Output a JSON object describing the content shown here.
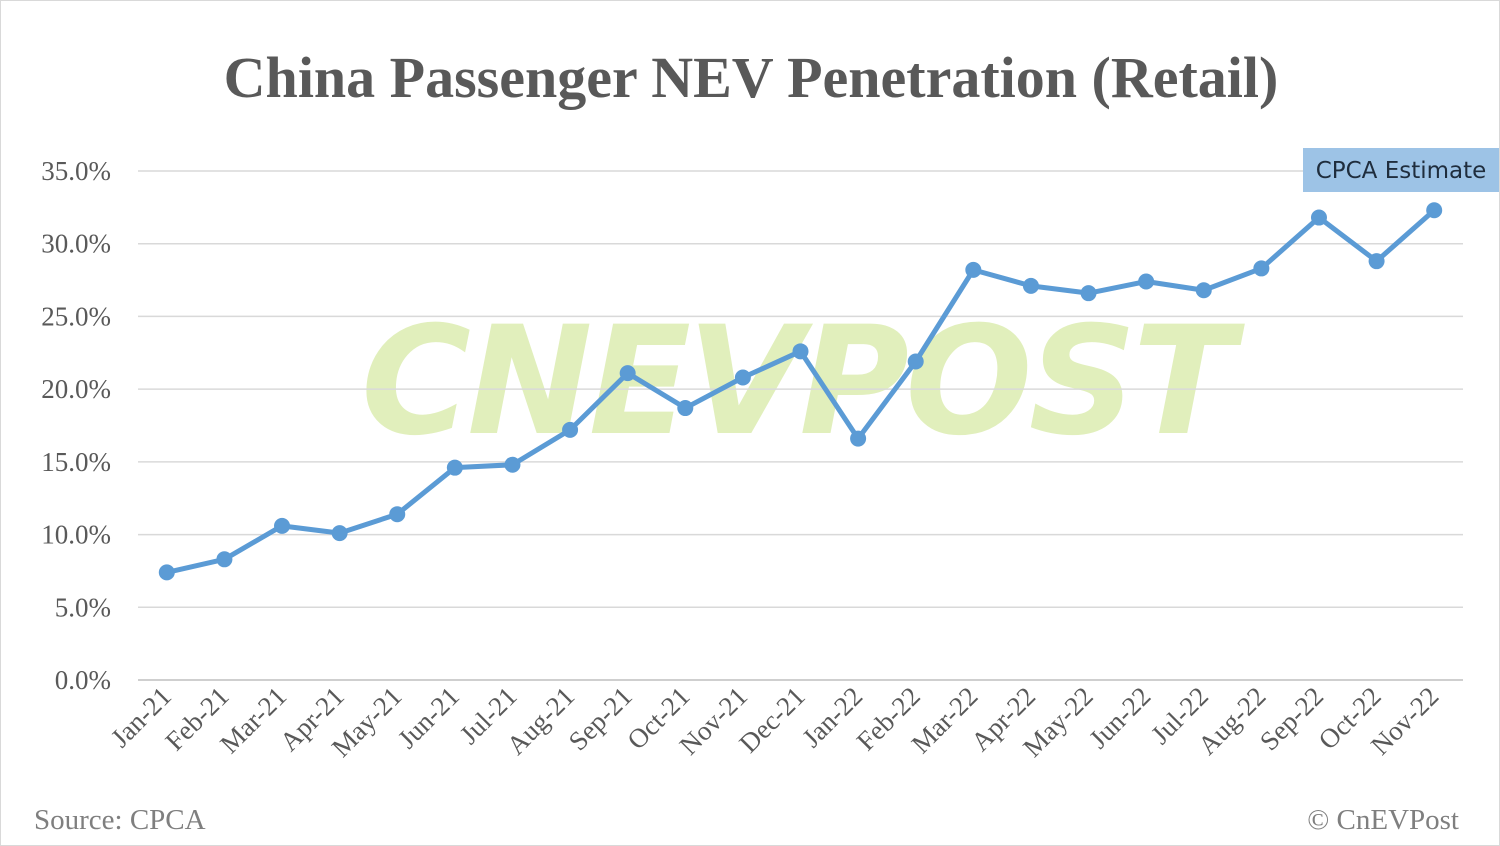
{
  "chart_data": {
    "type": "line",
    "title": "China Passenger NEV Penetration (Retail)",
    "categories": [
      "Jan-21",
      "Feb-21",
      "Mar-21",
      "Apr-21",
      "May-21",
      "Jun-21",
      "Jul-21",
      "Aug-21",
      "Sep-21",
      "Oct-21",
      "Nov-21",
      "Dec-21",
      "Jan-22",
      "Feb-22",
      "Mar-22",
      "Apr-22",
      "May-22",
      "Jun-22",
      "Jul-22",
      "Aug-22",
      "Sep-22",
      "Oct-22",
      "Nov-22"
    ],
    "values": [
      7.4,
      8.3,
      10.6,
      10.1,
      11.4,
      14.6,
      14.8,
      17.2,
      21.1,
      18.7,
      20.8,
      22.6,
      16.6,
      21.9,
      28.2,
      27.1,
      26.6,
      27.4,
      26.8,
      28.3,
      31.8,
      28.8,
      32.3
    ],
    "ylim": [
      0,
      35
    ],
    "yticks": [
      "0.0%",
      "5.0%",
      "10.0%",
      "15.0%",
      "20.0%",
      "25.0%",
      "30.0%",
      "35.0%"
    ],
    "xlabel": "",
    "ylabel": "",
    "grid": true,
    "line_color": "#5b9bd5",
    "annotation": {
      "text": "CPCA Estimate",
      "target": "Nov-22",
      "background": "#9dc3e6"
    }
  },
  "footer": {
    "source": "Source: CPCA",
    "copyright": "© CnEVPost"
  },
  "watermark": "CnEVPost"
}
